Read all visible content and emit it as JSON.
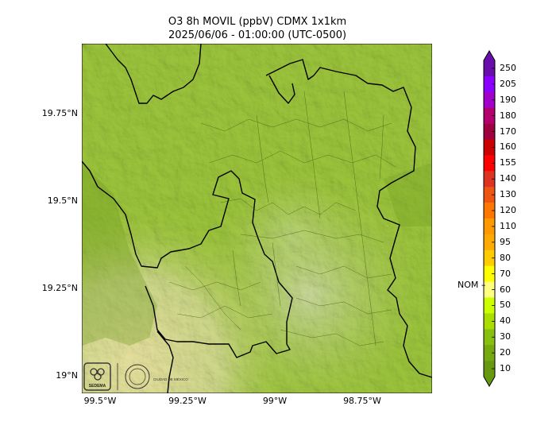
{
  "title": {
    "line1": "O3 8h MOVIL (ppbV) CDMX 1x1km",
    "line2": "2025/06/06 - 01:00:00 (UTC-0500)"
  },
  "map": {
    "region": "CDMX (Ciudad de México) and surroundings",
    "base_color": "#98c43a",
    "lat_ticks": [
      "19.75°N",
      "19.5°N",
      "19.25°N",
      "19°N"
    ],
    "lon_ticks": [
      "99.5°W",
      "99.25°W",
      "99°W",
      "98.75°W"
    ],
    "logos": [
      "SEDEMA",
      "CIUDAD DE MÉXICO"
    ]
  },
  "colorbar": {
    "ticks": [
      "250",
      "205",
      "190",
      "180",
      "170",
      "160",
      "155",
      "140",
      "130",
      "120",
      "110",
      "95",
      "80",
      "70",
      "60",
      "50",
      "40",
      "30",
      "20",
      "10"
    ],
    "colors": [
      "#6a0dad",
      "#8b00ff",
      "#a000c8",
      "#b4006e",
      "#a00040",
      "#cc0000",
      "#ff0000",
      "#dd3322",
      "#ee5511",
      "#ff7700",
      "#ff9900",
      "#ffaa00",
      "#ffcc00",
      "#ffff00",
      "#ffff80",
      "#ccff00",
      "#aadd00",
      "#88c010",
      "#77aa10",
      "#669910"
    ],
    "reference_label": "NOM",
    "reference_value": 60
  }
}
